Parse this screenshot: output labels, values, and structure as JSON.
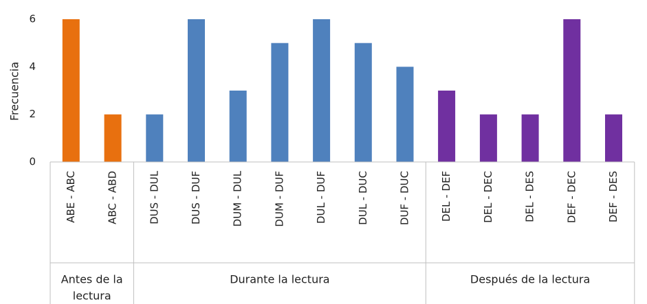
{
  "chart_data": {
    "type": "bar",
    "ylabel": "Frecuencia",
    "ylim": [
      0,
      6
    ],
    "yticks": [
      "0",
      "2",
      "4",
      "6"
    ],
    "grid": false,
    "categories": [
      "ABE - ABC",
      "ABC - ABD",
      "DUS - DUL",
      "DUS - DUF",
      "DUM - DUL",
      "DUM - DUF",
      "DUL - DUF",
      "DUL - DUC",
      "DUF - DUC",
      "DEL - DEF",
      "DEL - DEC",
      "DEL - DES",
      "DEF - DEC",
      "DEF - DES"
    ],
    "values": [
      6,
      2,
      2,
      6,
      3,
      5,
      6,
      5,
      4,
      3,
      2,
      2,
      6,
      2
    ],
    "groups": [
      {
        "label_lines": [
          "Antes de la",
          "lectura"
        ],
        "count": 2,
        "color": "#e8700f"
      },
      {
        "label_lines": [
          "Durante la lectura"
        ],
        "count": 7,
        "color": "#4f81bd"
      },
      {
        "label_lines": [
          "Después de la lectura"
        ],
        "count": 5,
        "color": "#7030a0"
      }
    ],
    "axis_color": "#bfbfbf"
  }
}
